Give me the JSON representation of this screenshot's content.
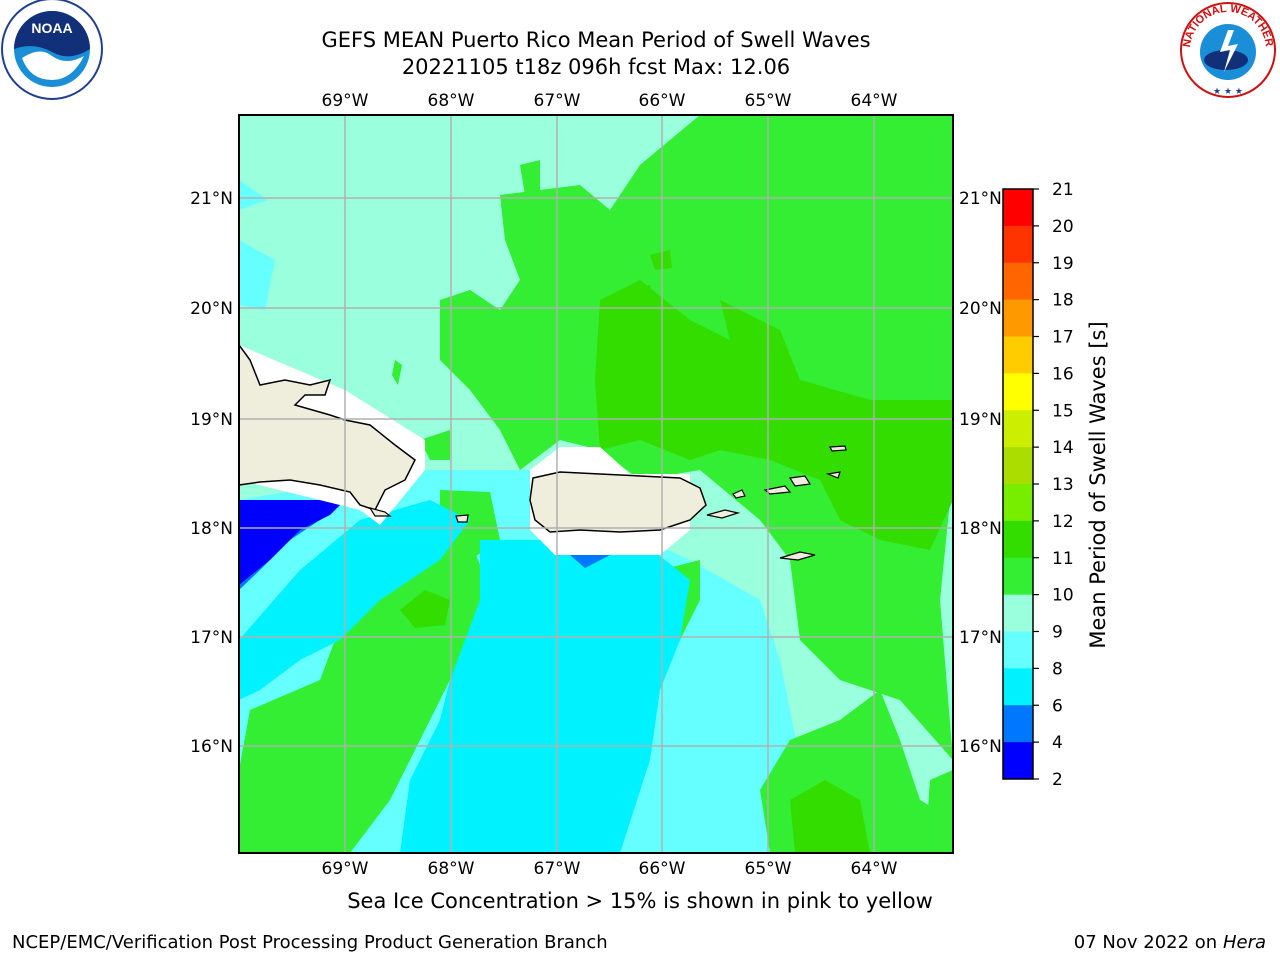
{
  "title": {
    "line1": "GEFS MEAN Puerto Rico Mean Period of Swell Waves",
    "line2": "20221105 t18z 096h fcst   Max: 12.06"
  },
  "map": {
    "lon_labels": [
      "69°W",
      "68°W",
      "67°W",
      "66°W",
      "65°W",
      "64°W"
    ],
    "lat_labels": [
      "21°N",
      "20°N",
      "19°N",
      "18°N",
      "17°N",
      "16°N"
    ],
    "land_color": "#efeddc",
    "grid_color": "#b0b0b0"
  },
  "colorbar": {
    "label": "Mean Period of Swell Waves [s]",
    "ticks": [
      "21",
      "20",
      "19",
      "18",
      "17",
      "16",
      "15",
      "14",
      "13",
      "12",
      "11",
      "10",
      "9",
      "8",
      "6",
      "4",
      "2"
    ],
    "colors": [
      "#ff0000",
      "#ff3300",
      "#ff6600",
      "#ff9900",
      "#ffcc00",
      "#ffff00",
      "#ccee00",
      "#aadd00",
      "#77ee00",
      "#33dd00",
      "#33ee33",
      "#99ffdd",
      "#66ffff",
      "#00f2ff",
      "#0077ff",
      "#0000ff"
    ]
  },
  "caption": "Sea Ice Concentration > 15% is shown in pink to yellow",
  "credit_left": "NCEP/EMC/Verification Post Processing Product Generation Branch",
  "credit_right_date": "07 Nov 2022 on",
  "credit_right_machine": "Hera",
  "logos": {
    "noaa_text": "NOAA",
    "nws_text": "NATIONAL WEATHER SERVICE"
  }
}
